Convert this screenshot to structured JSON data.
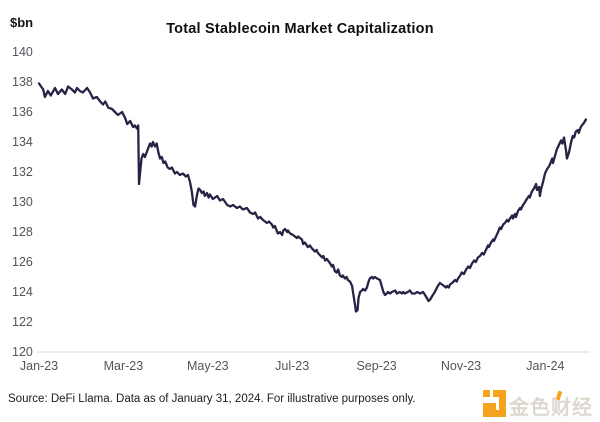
{
  "chart_data": {
    "type": "line",
    "title": "Total Stablecoin Market Capitalization",
    "ylabel": "$bn",
    "xlabel": "",
    "ylim": [
      120,
      140
    ],
    "yticks": [
      140,
      138,
      136,
      134,
      132,
      130,
      128,
      126,
      124,
      122,
      120
    ],
    "x_unit": "months since 2023-01-01",
    "xlim": [
      0,
      12.97
    ],
    "xticks": [
      {
        "t": 0,
        "label": "Jan-23"
      },
      {
        "t": 2,
        "label": "Mar-23"
      },
      {
        "t": 4,
        "label": "May-23"
      },
      {
        "t": 6,
        "label": "Jul-23"
      },
      {
        "t": 8,
        "label": "Sep-23"
      },
      {
        "t": 10,
        "label": "Nov-23"
      },
      {
        "t": 12,
        "label": "Jan-24"
      }
    ],
    "grid": false,
    "legend": null,
    "line_color": "#282245",
    "axis_line_color": "#d9d9d9",
    "series": [
      {
        "name": "Total stablecoin market capitalization ($bn)",
        "points": [
          [
            0.0,
            137.9
          ],
          [
            0.05,
            137.7
          ],
          [
            0.1,
            137.5
          ],
          [
            0.14,
            137.0
          ],
          [
            0.21,
            137.4
          ],
          [
            0.28,
            137.1
          ],
          [
            0.38,
            137.6
          ],
          [
            0.45,
            137.2
          ],
          [
            0.54,
            137.5
          ],
          [
            0.62,
            137.2
          ],
          [
            0.69,
            137.7
          ],
          [
            0.78,
            137.5
          ],
          [
            0.85,
            137.3
          ],
          [
            0.9,
            137.6
          ],
          [
            0.97,
            137.4
          ],
          [
            1.04,
            137.3
          ],
          [
            1.14,
            137.6
          ],
          [
            1.21,
            137.3
          ],
          [
            1.28,
            136.9
          ],
          [
            1.37,
            137.0
          ],
          [
            1.45,
            136.7
          ],
          [
            1.52,
            136.5
          ],
          [
            1.57,
            136.7
          ],
          [
            1.64,
            136.3
          ],
          [
            1.73,
            136.2
          ],
          [
            1.8,
            136.0
          ],
          [
            1.87,
            135.8
          ],
          [
            1.97,
            136.0
          ],
          [
            2.04,
            135.6
          ],
          [
            2.09,
            135.2
          ],
          [
            2.16,
            135.4
          ],
          [
            2.23,
            135.0
          ],
          [
            2.27,
            135.1
          ],
          [
            2.32,
            134.9
          ],
          [
            2.35,
            135.1
          ],
          [
            2.37,
            131.2
          ],
          [
            2.43,
            132.9
          ],
          [
            2.47,
            133.2
          ],
          [
            2.51,
            133.0
          ],
          [
            2.55,
            133.3
          ],
          [
            2.59,
            133.6
          ],
          [
            2.63,
            133.9
          ],
          [
            2.67,
            133.7
          ],
          [
            2.7,
            134.0
          ],
          [
            2.75,
            133.7
          ],
          [
            2.79,
            133.9
          ],
          [
            2.83,
            133.3
          ],
          [
            2.87,
            132.9
          ],
          [
            2.91,
            133.0
          ],
          [
            2.95,
            132.6
          ],
          [
            2.99,
            132.7
          ],
          [
            3.05,
            132.3
          ],
          [
            3.1,
            132.2
          ],
          [
            3.15,
            132.3
          ],
          [
            3.22,
            131.9
          ],
          [
            3.27,
            132.0
          ],
          [
            3.34,
            131.8
          ],
          [
            3.41,
            131.9
          ],
          [
            3.48,
            131.7
          ],
          [
            3.53,
            131.8
          ],
          [
            3.58,
            131.3
          ],
          [
            3.62,
            130.7
          ],
          [
            3.66,
            129.8
          ],
          [
            3.7,
            129.7
          ],
          [
            3.74,
            130.4
          ],
          [
            3.78,
            130.9
          ],
          [
            3.82,
            130.8
          ],
          [
            3.86,
            130.6
          ],
          [
            3.9,
            130.7
          ],
          [
            3.93,
            130.4
          ],
          [
            3.98,
            130.6
          ],
          [
            4.02,
            130.3
          ],
          [
            4.05,
            130.5
          ],
          [
            4.12,
            130.2
          ],
          [
            4.22,
            130.4
          ],
          [
            4.29,
            130.1
          ],
          [
            4.36,
            130.2
          ],
          [
            4.41,
            130.0
          ],
          [
            4.46,
            129.8
          ],
          [
            4.53,
            129.7
          ],
          [
            4.6,
            129.8
          ],
          [
            4.69,
            129.6
          ],
          [
            4.76,
            129.7
          ],
          [
            4.83,
            129.5
          ],
          [
            4.93,
            129.6
          ],
          [
            5.0,
            129.3
          ],
          [
            5.07,
            129.2
          ],
          [
            5.12,
            129.3
          ],
          [
            5.19,
            128.9
          ],
          [
            5.24,
            129.0
          ],
          [
            5.31,
            128.8
          ],
          [
            5.4,
            128.6
          ],
          [
            5.45,
            128.7
          ],
          [
            5.52,
            128.5
          ],
          [
            5.55,
            128.3
          ],
          [
            5.59,
            128.4
          ],
          [
            5.63,
            128.1
          ],
          [
            5.66,
            127.9
          ],
          [
            5.71,
            128.0
          ],
          [
            5.76,
            127.8
          ],
          [
            5.79,
            128.1
          ],
          [
            5.83,
            128.2
          ],
          [
            5.88,
            128.0
          ],
          [
            5.9,
            128.1
          ],
          [
            5.95,
            127.9
          ],
          [
            6.02,
            127.8
          ],
          [
            6.11,
            127.6
          ],
          [
            6.14,
            127.7
          ],
          [
            6.23,
            127.5
          ],
          [
            6.26,
            127.2
          ],
          [
            6.3,
            127.3
          ],
          [
            6.37,
            127.0
          ],
          [
            6.42,
            127.1
          ],
          [
            6.47,
            126.9
          ],
          [
            6.54,
            126.7
          ],
          [
            6.58,
            126.8
          ],
          [
            6.61,
            126.6
          ],
          [
            6.71,
            126.3
          ],
          [
            6.74,
            126.4
          ],
          [
            6.78,
            126.1
          ],
          [
            6.82,
            126.2
          ],
          [
            6.9,
            125.9
          ],
          [
            6.94,
            125.7
          ],
          [
            6.97,
            125.8
          ],
          [
            7.01,
            125.4
          ],
          [
            7.05,
            125.3
          ],
          [
            7.09,
            125.5
          ],
          [
            7.13,
            125.1
          ],
          [
            7.18,
            125.0
          ],
          [
            7.2,
            125.1
          ],
          [
            7.25,
            124.9
          ],
          [
            7.29,
            125.0
          ],
          [
            7.32,
            124.8
          ],
          [
            7.37,
            124.7
          ],
          [
            7.42,
            124.4
          ],
          [
            7.44,
            124.0
          ],
          [
            7.49,
            123.1
          ],
          [
            7.51,
            122.7
          ],
          [
            7.55,
            122.8
          ],
          [
            7.57,
            123.6
          ],
          [
            7.61,
            124.0
          ],
          [
            7.65,
            124.1
          ],
          [
            7.68,
            124.2
          ],
          [
            7.73,
            124.1
          ],
          [
            7.77,
            124.3
          ],
          [
            7.81,
            124.7
          ],
          [
            7.84,
            124.9
          ],
          [
            7.89,
            125.0
          ],
          [
            7.92,
            124.9
          ],
          [
            7.96,
            125.0
          ],
          [
            8.01,
            124.9
          ],
          [
            8.08,
            124.8
          ],
          [
            8.13,
            124.3
          ],
          [
            8.16,
            124.0
          ],
          [
            8.2,
            123.8
          ],
          [
            8.24,
            123.9
          ],
          [
            8.27,
            124.0
          ],
          [
            8.32,
            123.9
          ],
          [
            8.36,
            124.0
          ],
          [
            8.44,
            124.1
          ],
          [
            8.48,
            123.9
          ],
          [
            8.55,
            124.0
          ],
          [
            8.6,
            123.9
          ],
          [
            8.63,
            124.0
          ],
          [
            8.67,
            123.9
          ],
          [
            8.74,
            124.0
          ],
          [
            8.79,
            124.1
          ],
          [
            8.84,
            123.9
          ],
          [
            8.91,
            123.9
          ],
          [
            8.96,
            124.0
          ],
          [
            9.03,
            123.9
          ],
          [
            9.1,
            124.0
          ],
          [
            9.15,
            123.8
          ],
          [
            9.19,
            123.6
          ],
          [
            9.23,
            123.4
          ],
          [
            9.27,
            123.5
          ],
          [
            9.31,
            123.7
          ],
          [
            9.38,
            124.0
          ],
          [
            9.45,
            124.4
          ],
          [
            9.5,
            124.6
          ],
          [
            9.55,
            124.5
          ],
          [
            9.6,
            124.4
          ],
          [
            9.64,
            124.3
          ],
          [
            9.67,
            124.4
          ],
          [
            9.71,
            124.3
          ],
          [
            9.74,
            124.5
          ],
          [
            9.79,
            124.6
          ],
          [
            9.86,
            124.8
          ],
          [
            9.9,
            124.7
          ],
          [
            9.93,
            124.9
          ],
          [
            9.98,
            125.1
          ],
          [
            10.02,
            125.3
          ],
          [
            10.07,
            125.2
          ],
          [
            10.12,
            125.5
          ],
          [
            10.17,
            125.7
          ],
          [
            10.21,
            125.6
          ],
          [
            10.26,
            125.9
          ],
          [
            10.31,
            126.1
          ],
          [
            10.35,
            126.0
          ],
          [
            10.4,
            126.3
          ],
          [
            10.45,
            126.4
          ],
          [
            10.5,
            126.6
          ],
          [
            10.54,
            126.5
          ],
          [
            10.59,
            126.8
          ],
          [
            10.64,
            127.1
          ],
          [
            10.66,
            127.0
          ],
          [
            10.71,
            127.3
          ],
          [
            10.76,
            127.5
          ],
          [
            10.78,
            127.4
          ],
          [
            10.83,
            127.7
          ],
          [
            10.88,
            128.0
          ],
          [
            10.92,
            128.3
          ],
          [
            10.95,
            128.2
          ],
          [
            11.0,
            128.5
          ],
          [
            11.04,
            128.6
          ],
          [
            11.09,
            128.8
          ],
          [
            11.12,
            128.7
          ],
          [
            11.16,
            128.9
          ],
          [
            11.21,
            129.1
          ],
          [
            11.23,
            128.9
          ],
          [
            11.28,
            129.2
          ],
          [
            11.3,
            129.0
          ],
          [
            11.35,
            129.4
          ],
          [
            11.4,
            129.6
          ],
          [
            11.42,
            129.5
          ],
          [
            11.47,
            129.8
          ],
          [
            11.52,
            130.0
          ],
          [
            11.56,
            130.2
          ],
          [
            11.61,
            130.4
          ],
          [
            11.63,
            130.3
          ],
          [
            11.68,
            130.7
          ],
          [
            11.73,
            130.9
          ],
          [
            11.78,
            131.2
          ],
          [
            11.8,
            130.8
          ],
          [
            11.85,
            131.0
          ],
          [
            11.87,
            130.4
          ],
          [
            11.9,
            130.9
          ],
          [
            11.94,
            131.3
          ],
          [
            11.99,
            131.9
          ],
          [
            12.04,
            132.2
          ],
          [
            12.09,
            132.4
          ],
          [
            12.12,
            132.6
          ],
          [
            12.16,
            132.9
          ],
          [
            12.18,
            132.6
          ],
          [
            12.23,
            133.1
          ],
          [
            12.27,
            133.5
          ],
          [
            12.32,
            133.8
          ],
          [
            12.37,
            134.1
          ],
          [
            12.4,
            133.9
          ],
          [
            12.44,
            134.3
          ],
          [
            12.49,
            133.4
          ],
          [
            12.51,
            132.9
          ],
          [
            12.56,
            133.3
          ],
          [
            12.61,
            134.0
          ],
          [
            12.65,
            134.4
          ],
          [
            12.68,
            134.3
          ],
          [
            12.72,
            134.7
          ],
          [
            12.77,
            134.8
          ],
          [
            12.79,
            134.6
          ],
          [
            12.84,
            135.0
          ],
          [
            12.89,
            135.2
          ],
          [
            12.92,
            135.3
          ],
          [
            12.96,
            135.5
          ]
        ]
      }
    ]
  },
  "footer": {
    "source_note": "Source: DeFi Llama. Data as of January 31, 2024. For illustrative purposes only.",
    "logo_text": "金色财经",
    "logo_color": "#F5A21C"
  }
}
